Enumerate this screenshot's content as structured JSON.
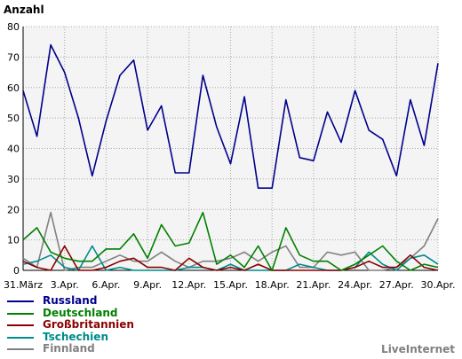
{
  "chart_data": {
    "type": "line",
    "ylabel": "Anzahl",
    "ylim": [
      0,
      80
    ],
    "yticks": [
      0,
      10,
      20,
      30,
      40,
      50,
      60,
      70,
      80
    ],
    "grid": true,
    "legend_position": "bottom-left",
    "categories": [
      "31.März",
      "1.Apr.",
      "2.Apr.",
      "3.Apr.",
      "4.Apr.",
      "5.Apr.",
      "6.Apr.",
      "7.Apr.",
      "8.Apr.",
      "9.Apr.",
      "10.Apr.",
      "11.Apr.",
      "12.Apr.",
      "13.Apr.",
      "14.Apr.",
      "15.Apr.",
      "16.Apr.",
      "17.Apr.",
      "18.Apr.",
      "19.Apr.",
      "20.Apr.",
      "21.Apr.",
      "22.Apr.",
      "23.Apr.",
      "24.Apr.",
      "25.Apr.",
      "26.Apr.",
      "27.Apr.",
      "28.Apr.",
      "29.Apr.",
      "30.Apr."
    ],
    "x_tick_labels": [
      "31.März",
      "3.Apr.",
      "6.Apr.",
      "9.Apr.",
      "12.Apr.",
      "15.Apr.",
      "18.Apr.",
      "21.Apr.",
      "24.Apr.",
      "27.Apr.",
      "30.Apr."
    ],
    "series": [
      {
        "name": "Russland",
        "color": "#00008b",
        "values": [
          59,
          44,
          74,
          65,
          50,
          31,
          49,
          64,
          69,
          46,
          54,
          32,
          32,
          64,
          47,
          35,
          57,
          27,
          27,
          56,
          37,
          36,
          52,
          42,
          59,
          46,
          43,
          31,
          56,
          41,
          68
        ]
      },
      {
        "name": "Deutschland",
        "color": "#008000",
        "values": [
          10,
          14,
          6,
          4,
          3,
          3,
          7,
          7,
          12,
          4,
          15,
          8,
          9,
          19,
          2,
          5,
          1,
          8,
          0,
          14,
          5,
          3,
          3,
          0,
          2,
          5,
          8,
          3,
          0,
          2,
          1
        ]
      },
      {
        "name": "Großbritannien",
        "color": "#8b0000",
        "values": [
          3,
          1,
          0,
          8,
          0,
          0,
          1,
          3,
          4,
          1,
          1,
          0,
          4,
          1,
          0,
          1,
          0,
          2,
          0,
          0,
          0,
          0,
          0,
          0,
          1,
          3,
          1,
          1,
          5,
          1,
          0
        ]
      },
      {
        "name": "Tschechien",
        "color": "#008b8b",
        "values": [
          2,
          3,
          5,
          1,
          0,
          8,
          0,
          1,
          0,
          0,
          0,
          0,
          1,
          1,
          0,
          2,
          0,
          0,
          0,
          0,
          2,
          1,
          0,
          0,
          1,
          6,
          2,
          0,
          4,
          5,
          2
        ]
      },
      {
        "name": "Finnland",
        "color": "#808080",
        "values": [
          4,
          1,
          19,
          0,
          1,
          1,
          3,
          5,
          3,
          3,
          6,
          3,
          1,
          3,
          3,
          4,
          6,
          3,
          6,
          8,
          1,
          1,
          6,
          5,
          6,
          0,
          0,
          1,
          4,
          8,
          17
        ]
      }
    ]
  },
  "brand": "LiveInternet"
}
